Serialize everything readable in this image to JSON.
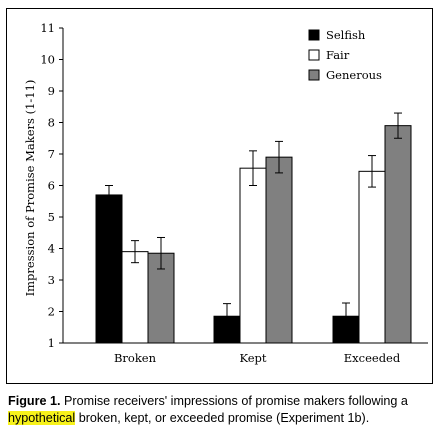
{
  "chart_data": {
    "type": "bar",
    "title": "",
    "xlabel": "",
    "ylabel": "Impression of Promise Makers (1-11)",
    "ylim": [
      1,
      11
    ],
    "yticks": [
      "1",
      "2",
      "3",
      "4",
      "5",
      "6",
      "7",
      "8",
      "9",
      "10",
      "11"
    ],
    "categories": [
      "Broken",
      "Kept",
      "Exceeded"
    ],
    "series": [
      {
        "name": "Selfish",
        "color": "#000000",
        "values": [
          5.7,
          1.85,
          1.85
        ],
        "error": [
          0.3,
          0.4,
          0.42
        ]
      },
      {
        "name": "Fair",
        "color": "#ffffff",
        "values": [
          3.9,
          6.55,
          6.45
        ],
        "error": [
          0.35,
          0.55,
          0.5
        ]
      },
      {
        "name": "Generous",
        "color": "#808080",
        "values": [
          3.85,
          6.9,
          7.9
        ],
        "error": [
          0.5,
          0.5,
          0.4
        ]
      }
    ],
    "legend_position": "top-right",
    "grid": false
  },
  "caption": {
    "label": "Figure 1.",
    "text_before": " Promise receivers' impressions of promise makers following a ",
    "highlight": "hypothetical",
    "text_after": " broken, kept, or exceeded promise (Experiment 1b)."
  }
}
